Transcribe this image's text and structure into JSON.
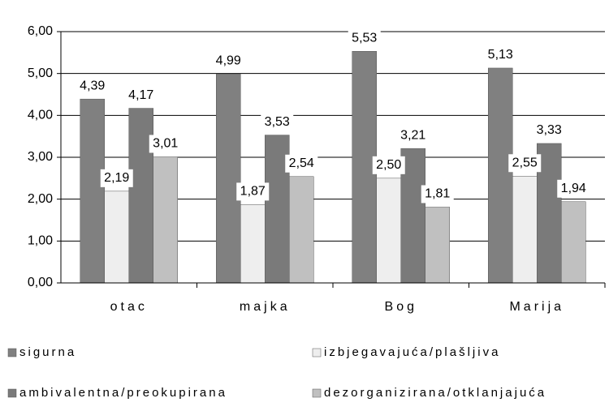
{
  "chart_data": {
    "type": "bar",
    "categories": [
      "otac",
      "majka",
      "Bog",
      "Marija"
    ],
    "series": [
      {
        "name": "sigurna",
        "color": "#808080",
        "values": [
          4.39,
          4.99,
          5.53,
          5.13
        ],
        "value_labels": [
          "4,39",
          "4,99",
          "5,53",
          "5,13"
        ]
      },
      {
        "name": "izbjegavajuća/plašljiva",
        "color": "#eeeeee",
        "values": [
          2.19,
          1.87,
          2.5,
          2.55
        ],
        "value_labels": [
          "2,19",
          "1,87",
          "2,50",
          "2,55"
        ]
      },
      {
        "name": "ambivalentna/preokupirana",
        "color": "#7a7a7a",
        "values": [
          4.17,
          3.53,
          3.21,
          3.33
        ],
        "value_labels": [
          "4,17",
          "3,53",
          "3,21",
          "3,33"
        ]
      },
      {
        "name": "dezorganizirana/otklanjajuća",
        "color": "#c0c0c0",
        "values": [
          3.01,
          2.54,
          1.81,
          1.94
        ],
        "value_labels": [
          "3,01",
          "2,54",
          "1,81",
          "1,94"
        ]
      }
    ],
    "ylim": [
      0,
      6
    ],
    "yticks": [
      {
        "value": 0,
        "label": "0,00"
      },
      {
        "value": 1,
        "label": "1,00"
      },
      {
        "value": 2,
        "label": "2,00"
      },
      {
        "value": 3,
        "label": "3,00"
      },
      {
        "value": 4,
        "label": "4,00"
      },
      {
        "value": 5,
        "label": "5,00"
      },
      {
        "value": 6,
        "label": "6,00"
      }
    ],
    "grid": true
  }
}
